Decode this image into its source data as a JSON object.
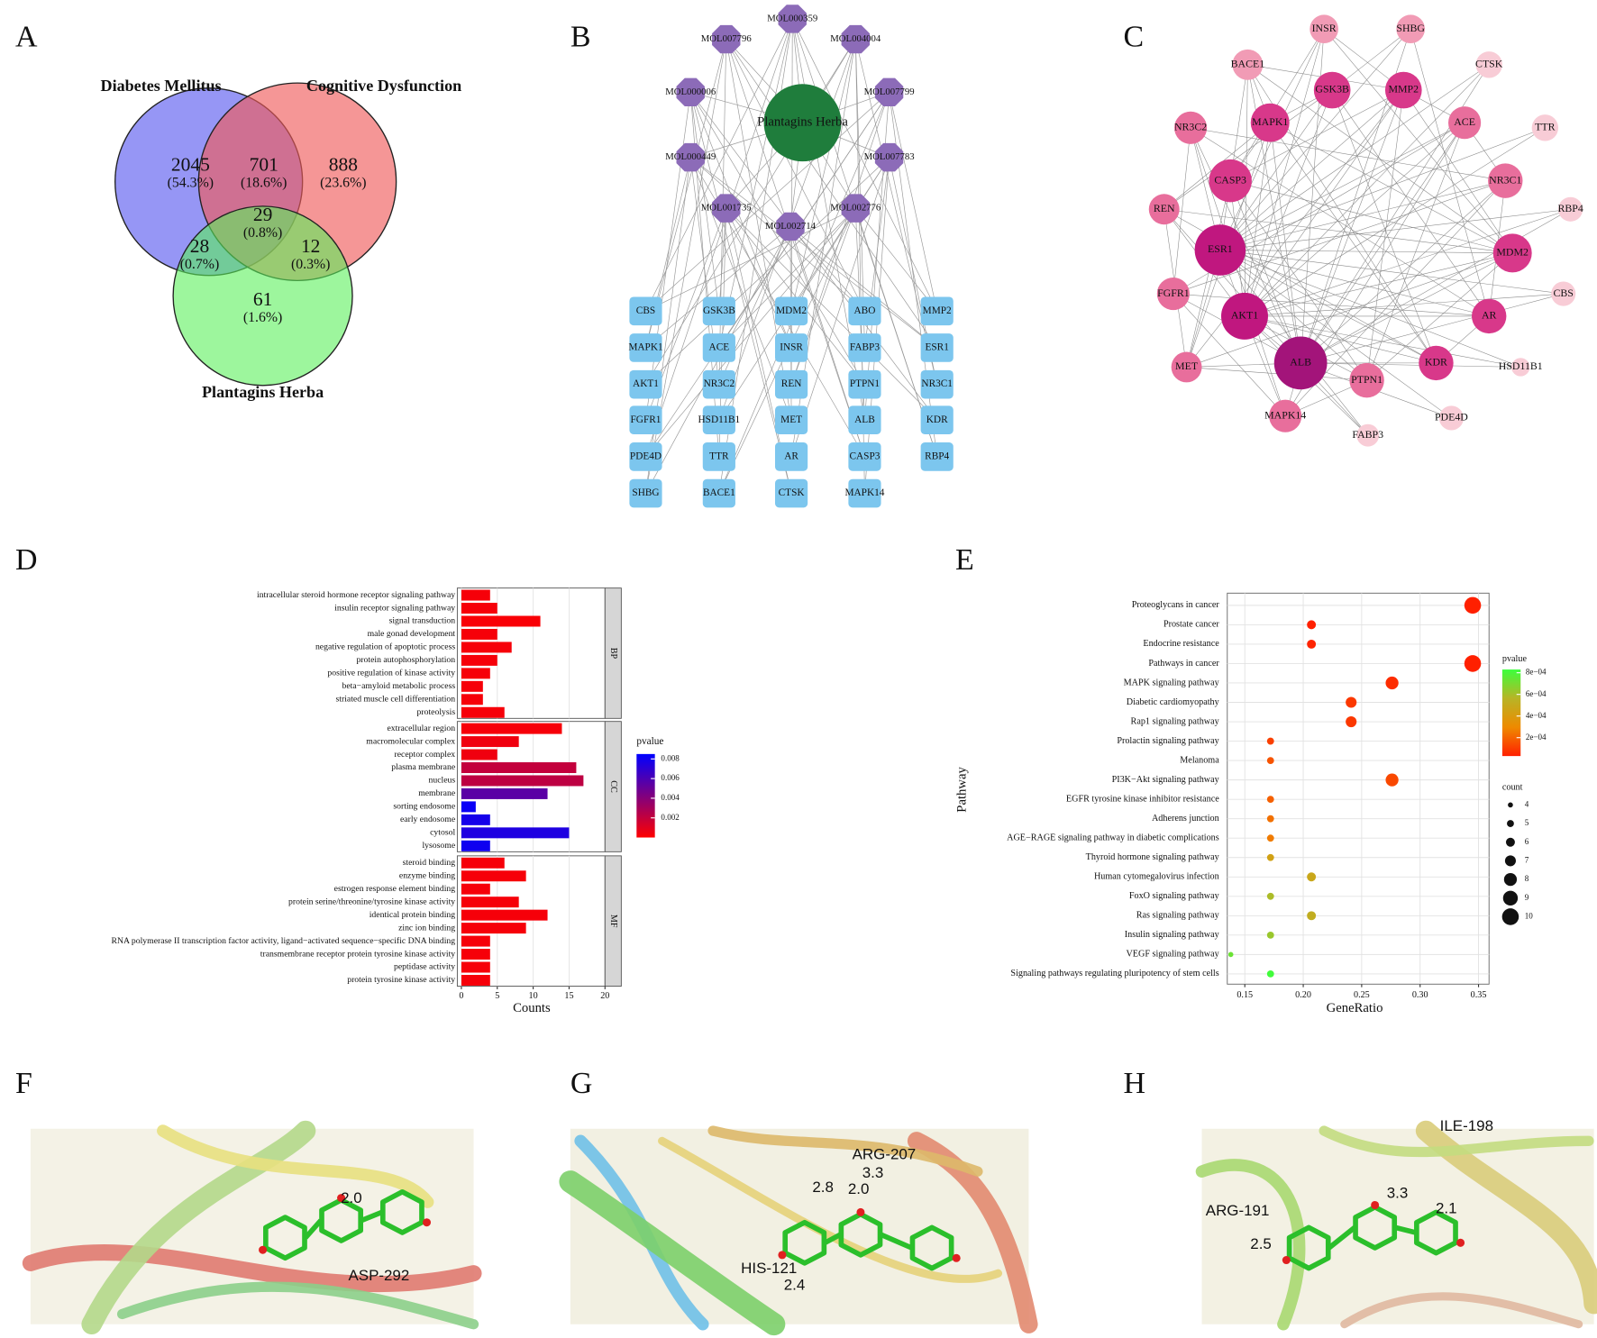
{
  "panel_labels": [
    "A",
    "B",
    "C",
    "D",
    "E",
    "F",
    "G",
    "H"
  ],
  "venn": {
    "sets": [
      "Diabetes Mellitus",
      "Cognitive Dysfunction",
      "Plantagins Herba"
    ],
    "regions": [
      {
        "count": 2045,
        "percent": "(54.3%)"
      },
      {
        "count": 701,
        "percent": "(18.6%)"
      },
      {
        "count": 888,
        "percent": "(23.6%)"
      },
      {
        "count": 29,
        "percent": "(0.8%)"
      },
      {
        "count": 28,
        "percent": "(0.7%)"
      },
      {
        "count": 12,
        "percent": "(0.3%)"
      },
      {
        "count": 61,
        "percent": "(1.6%)"
      }
    ]
  },
  "network_b": {
    "center": "Plantagins Herba",
    "compounds": [
      "MOL000359",
      "MOL007796",
      "MOL004004",
      "MOL000006",
      "MOL007799",
      "MOL000449",
      "MOL007783",
      "MOL001735",
      "MOL002776",
      "MOL002714"
    ],
    "targets": [
      [
        "CBS",
        "MAPK1",
        "AKT1",
        "FGFR1",
        "PDE4D",
        "SHBG"
      ],
      [
        "GSK3B",
        "ACE",
        "NR3C2",
        "HSD11B1",
        "TTR",
        "BACE1"
      ],
      [
        "MDM2",
        "INSR",
        "REN",
        "MET",
        "AR",
        "CTSK"
      ],
      [
        "ABO",
        "FABP3",
        "PTPN1",
        "ALB",
        "CASP3",
        "MAPK14"
      ],
      [
        "MMP2",
        "ESR1",
        "NR3C1",
        "KDR",
        "RBP4"
      ]
    ]
  },
  "network_c": {
    "nodes": [
      "INSR",
      "SHBG",
      "BACE1",
      "CTSK",
      "GSK3B",
      "MMP2",
      "NR3C2",
      "MAPK1",
      "ACE",
      "TTR",
      "CASP3",
      "NR3C1",
      "REN",
      "RBP4",
      "ESR1",
      "MDM2",
      "FGFR1",
      "CBS",
      "AKT1",
      "AR",
      "MET",
      "ALB",
      "KDR",
      "PTPN1",
      "HSD11B1",
      "PDE4D",
      "MAPK14",
      "FABP3"
    ]
  },
  "chart_data": [
    {
      "type": "bar",
      "xlabel": "Counts",
      "xlim": [
        0,
        20
      ],
      "xticks": [
        0,
        5,
        10,
        15,
        20
      ],
      "legend_title": "pvalue",
      "color_range": [
        0,
        0.0085
      ],
      "colors": [
        "#ff0000",
        "#0000ff"
      ],
      "colorbar_ticks": [
        0.002,
        0.004,
        0.006,
        0.008
      ],
      "grid": true,
      "groups": [
        {
          "name": "BP",
          "categories": [
            "intracellular steroid hormone receptor signaling pathway",
            "insulin receptor signaling pathway",
            "signal transduction",
            "male gonad development",
            "negative regulation of apoptotic process",
            "protein autophosphorylation",
            "positive regulation of kinase activity",
            "beta−amyloid metabolic process",
            "striated muscle cell differentiation",
            "proteolysis"
          ],
          "values": [
            4,
            5,
            11,
            5,
            7,
            5,
            4,
            3,
            3,
            6
          ],
          "pvalues": [
            0.0003,
            0.0003,
            0.0002,
            0.0003,
            0.0003,
            0.0003,
            0.0003,
            0.0003,
            0.0003,
            0.0003
          ]
        },
        {
          "name": "CC",
          "categories": [
            "extracellular region",
            "macromolecular complex",
            "receptor complex",
            "plasma membrane",
            "nucleus",
            "membrane",
            "sorting endosome",
            "early endosome",
            "cytosol",
            "lysosome"
          ],
          "values": [
            14,
            8,
            5,
            16,
            17,
            12,
            2,
            4,
            15,
            4
          ],
          "pvalues": [
            0.0003,
            0.0005,
            0.0005,
            0.002,
            0.0022,
            0.0055,
            0.0082,
            0.0078,
            0.0075,
            0.008
          ]
        },
        {
          "name": "MF",
          "categories": [
            "steroid binding",
            "enzyme binding",
            "estrogen response element binding",
            "protein serine/threonine/tyrosine kinase activity",
            "identical protein binding",
            "zinc ion binding",
            "RNA polymerase II transcription factor activity, ligand−activated sequence−specific DNA binding",
            "transmembrane receptor protein tyrosine kinase activity",
            "peptidase activity",
            "protein tyrosine kinase activity"
          ],
          "values": [
            6,
            9,
            4,
            8,
            12,
            9,
            4,
            4,
            4,
            4
          ],
          "pvalues": [
            0.0003,
            0.0003,
            0.0003,
            0.0003,
            0.0003,
            0.0003,
            0.0003,
            0.0003,
            0.0003,
            0.0003
          ]
        }
      ]
    },
    {
      "type": "scatter",
      "xlabel": "GeneRatio",
      "ylabel": "Pathway",
      "xlim": [
        0.135,
        0.359
      ],
      "xticks": [
        {
          "value": 0.15,
          "label": "0.15"
        },
        {
          "value": 0.2,
          "label": "0.20"
        },
        {
          "value": 0.25,
          "label": "0.25"
        },
        {
          "value": 0.3,
          "label": "0.30"
        },
        {
          "value": 0.35,
          "label": "0.35"
        }
      ],
      "grid": true,
      "categories": [
        "Proteoglycans in cancer",
        "Prostate cancer",
        "Endocrine resistance",
        "Pathways in cancer",
        "MAPK signaling pathway",
        "Diabetic cardiomyopathy",
        "Rap1 signaling pathway",
        "Prolactin signaling pathway",
        "Melanoma",
        "PI3K−Akt signaling pathway",
        "EGFR tyrosine kinase inhibitor resistance",
        "Adherens junction",
        "AGE−RAGE signaling pathway in diabetic complications",
        "Thyroid hormone signaling pathway",
        "Human cytomegalovirus infection",
        "FoxO signaling pathway",
        "Ras signaling pathway",
        "Insulin signaling pathway",
        "VEGF signaling pathway",
        "Signaling pathways regulating pluripotency of stem cells"
      ],
      "x": [
        0.345,
        0.207,
        0.207,
        0.345,
        0.276,
        0.241,
        0.241,
        0.172,
        0.172,
        0.276,
        0.172,
        0.172,
        0.172,
        0.172,
        0.207,
        0.172,
        0.207,
        0.172,
        0.138,
        0.172
      ],
      "sizes": [
        10,
        6,
        6,
        10,
        8,
        7,
        7,
        5,
        5,
        8,
        5,
        5,
        5,
        5,
        6,
        5,
        6,
        5,
        4,
        5
      ],
      "pvalues": [
        1e-05,
        3e-05,
        4e-05,
        1e-05,
        6e-05,
        9e-05,
        9e-05,
        0.00011,
        0.00016,
        0.00013,
        0.00019,
        0.00023,
        0.00026,
        0.00044,
        0.00048,
        0.00059,
        0.00052,
        0.00063,
        0.00073,
        0.00082
      ],
      "color_legend_title": "pvalue",
      "color_range": [
        3e-05,
        0.00083
      ],
      "colors": [
        "#ff2000",
        "#ee8a00",
        "#b8b426",
        "#3cff3c"
      ],
      "colorbar_ticks": [
        {
          "value": 0.0008,
          "label": "8e−04"
        },
        {
          "value": 0.0006,
          "label": "6e−04"
        },
        {
          "value": 0.0004,
          "label": "4e−04"
        },
        {
          "value": 0.0002,
          "label": "2e−04"
        }
      ],
      "size_legend_title": "count",
      "size_legend": [
        4,
        5,
        6,
        7,
        8,
        9,
        10
      ]
    }
  ],
  "docking": [
    {
      "labels": [
        "2.0",
        "ASP-292"
      ]
    },
    {
      "labels": [
        "ARG-207",
        "3.3",
        "2.8",
        "2.0",
        "HIS-121",
        "2.4"
      ]
    },
    {
      "labels": [
        "ILE-198",
        "3.3",
        "2.1",
        "ARG-191",
        "2.5"
      ]
    }
  ]
}
